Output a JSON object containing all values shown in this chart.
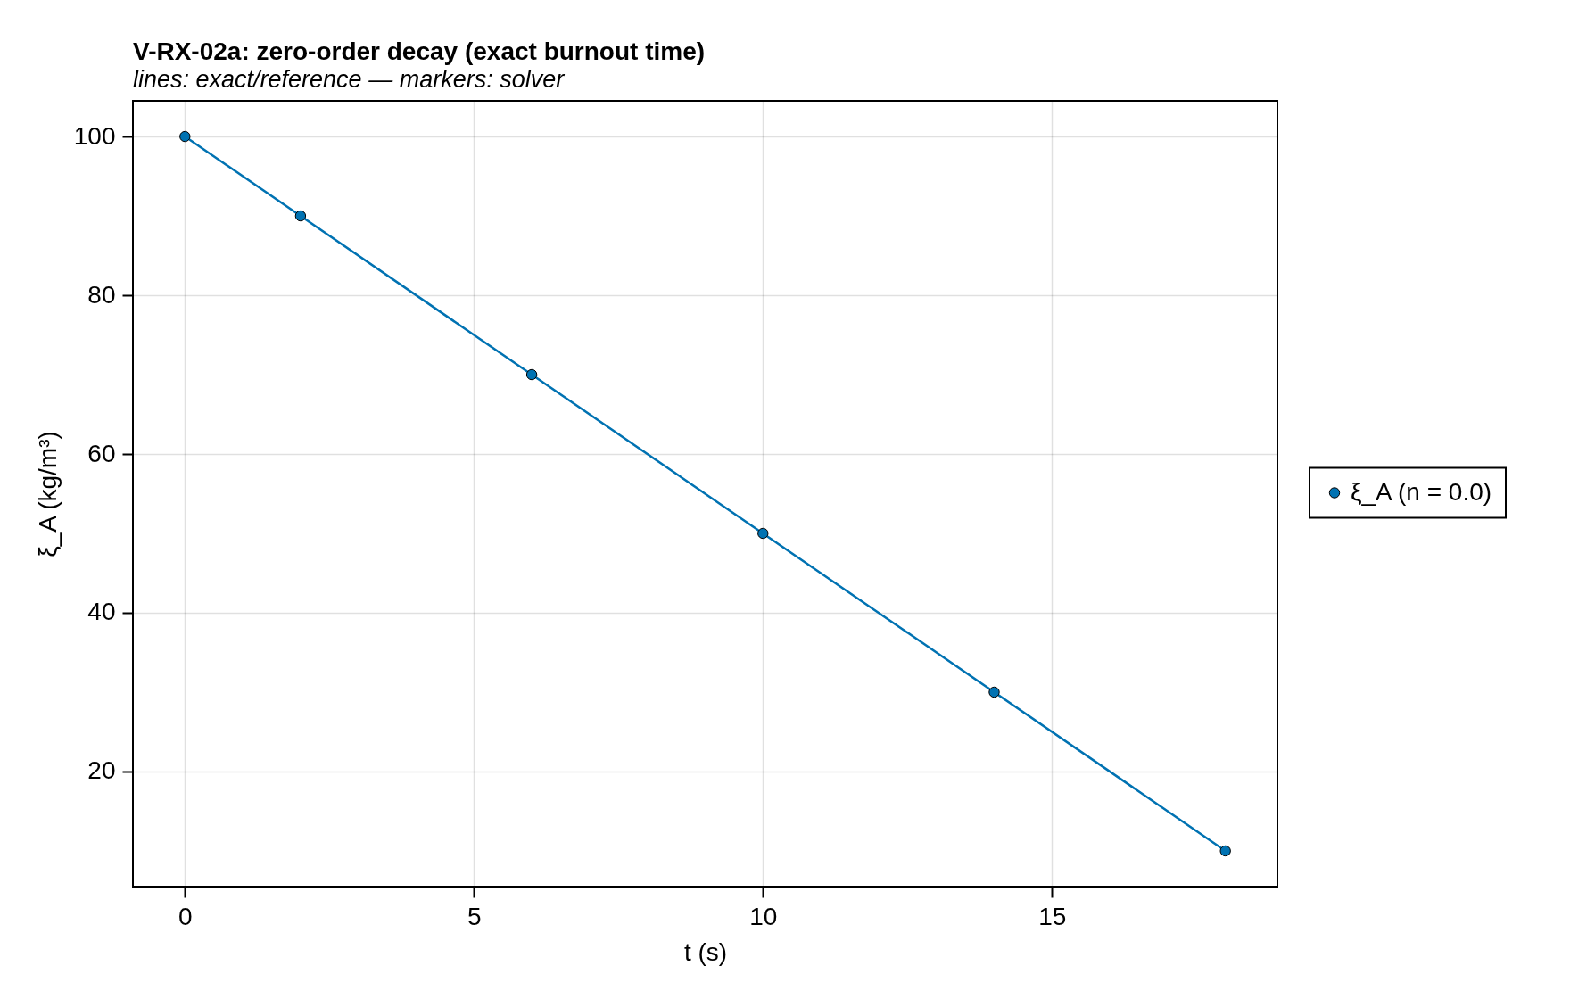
{
  "chart_data": {
    "type": "line",
    "title": "V-RX-02a: zero-order decay (exact burnout time)",
    "subtitle": "lines: exact/reference — markers: solver",
    "xlabel": "t (s)",
    "ylabel": "ξ_A (kg/m³)",
    "xlim": [
      -0.9,
      18.9
    ],
    "ylim": [
      5.5,
      104.5
    ],
    "xticks": [
      0,
      5,
      10,
      15
    ],
    "yticks": [
      20,
      40,
      60,
      80,
      100
    ],
    "grid": true,
    "legend": "right",
    "series": [
      {
        "color": "#0072b2",
        "x": [
          0,
          18
        ],
        "values": [
          100,
          10
        ],
        "line_style": "solid"
      },
      {
        "type": "scatter",
        "name": "ξ_A (n = 0.0)",
        "color": "#0072b2",
        "x": [
          0,
          2,
          6,
          10,
          14,
          18
        ],
        "values": [
          100,
          90,
          70,
          50,
          30,
          10
        ],
        "marker": "circle"
      }
    ]
  }
}
